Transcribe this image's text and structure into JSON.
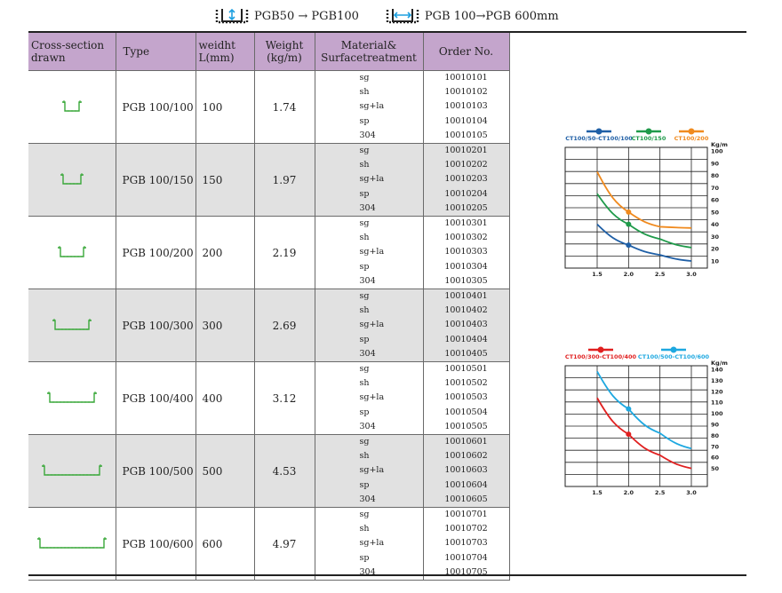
{
  "header": {
    "group1_text": "PGB50 → PGB100",
    "group2_text": "PGB 100→PGB 600mm"
  },
  "table": {
    "columns": [
      "Cross-section drawn",
      "Type",
      "weidht L(mm)",
      "Weight (kg/m)",
      "Material& Surfacetreatment",
      "Order No."
    ],
    "rows": [
      {
        "type": "PGB 100/100",
        "width": "100",
        "weight": "1.74",
        "materials": [
          "sg",
          "sh",
          "sg+la",
          "sp",
          "304"
        ],
        "orders": [
          "10010101",
          "10010102",
          "10010103",
          "10010104",
          "10010105"
        ],
        "channel_len": 16
      },
      {
        "type": "PGB 100/150",
        "width": "150",
        "weight": "1.97",
        "materials": [
          "sg",
          "sh",
          "sg+la",
          "sp",
          "304"
        ],
        "orders": [
          "10010201",
          "10010202",
          "10010203",
          "10010204",
          "10010205"
        ],
        "channel_len": 20
      },
      {
        "type": "PGB 100/200",
        "width": "200",
        "weight": "2.19",
        "materials": [
          "sg",
          "sh",
          "sg+la",
          "sp",
          "304"
        ],
        "orders": [
          "10010301",
          "10010302",
          "10010303",
          "10010304",
          "10010305"
        ],
        "channel_len": 26
      },
      {
        "type": "PGB 100/300",
        "width": "300",
        "weight": "2.69",
        "materials": [
          "sg",
          "sh",
          "sg+la",
          "sp",
          "304"
        ],
        "orders": [
          "10010401",
          "10010402",
          "10010403",
          "10010404",
          "10010405"
        ],
        "channel_len": 38
      },
      {
        "type": "PGB 100/400",
        "width": "400",
        "weight": "3.12",
        "materials": [
          "sg",
          "sh",
          "sg+la",
          "sp",
          "304"
        ],
        "orders": [
          "10010501",
          "10010502",
          "10010503",
          "10010504",
          "10010505"
        ],
        "channel_len": 50
      },
      {
        "type": "PGB 100/500",
        "width": "500",
        "weight": "4.53",
        "materials": [
          "sg",
          "sh",
          "sg+la",
          "sp",
          "304"
        ],
        "orders": [
          "10010601",
          "10010602",
          "10010603",
          "10010604",
          "10010605"
        ],
        "channel_len": 62
      },
      {
        "type": "PGB 100/600",
        "width": "600",
        "weight": "4.97",
        "materials": [
          "sg",
          "sh",
          "sg+la",
          "sp",
          "304"
        ],
        "orders": [
          "10010701",
          "10010702",
          "10010703",
          "10010704",
          "10010705"
        ],
        "channel_len": 72
      }
    ]
  },
  "chart_data": [
    {
      "type": "line",
      "title": "",
      "ylabel": "Kg/m",
      "x_ticks": [
        "1.5",
        "2.0",
        "2.5",
        "3.0"
      ],
      "y_ticks": [
        "100",
        "90",
        "80",
        "70",
        "60",
        "50",
        "40",
        "30",
        "20",
        "10"
      ],
      "xlim": [
        1.5,
        3.0
      ],
      "ylim": [
        10,
        100
      ],
      "legend_position": "top",
      "series": [
        {
          "name": "CT100/50-CT100/100",
          "color": "#1f5fa6",
          "x": [
            1.5,
            2.0,
            2.5,
            3.0
          ],
          "y": [
            40,
            23,
            15,
            10
          ],
          "marker_at": 2.0
        },
        {
          "name": "CT100/150",
          "color": "#1f9a4a",
          "x": [
            1.5,
            2.0,
            2.5,
            3.0
          ],
          "y": [
            65,
            40,
            28,
            21
          ],
          "marker_at": 2.0
        },
        {
          "name": "CT100/200",
          "color": "#f08a1e",
          "x": [
            1.5,
            2.0,
            2.5,
            3.0
          ],
          "y": [
            83,
            50,
            38,
            37
          ],
          "marker_at": 2.0
        }
      ]
    },
    {
      "type": "line",
      "title": "",
      "ylabel": "Kg/m",
      "x_ticks": [
        "1.5",
        "2.0",
        "2.5",
        "3.0"
      ],
      "y_ticks": [
        "140",
        "130",
        "120",
        "110",
        "100",
        "90",
        "80",
        "70",
        "60",
        "50"
      ],
      "xlim": [
        1.5,
        3.0
      ],
      "ylim": [
        40,
        140
      ],
      "legend_position": "top",
      "series": [
        {
          "name": "CT100/300-CT100/400",
          "color": "#e02020",
          "x": [
            1.5,
            2.0,
            2.5,
            3.0
          ],
          "y": [
            114,
            81,
            62,
            50
          ],
          "marker_at": 2.0
        },
        {
          "name": "CT100/500-CT100/600",
          "color": "#1ea8e0",
          "x": [
            1.5,
            2.0,
            2.5,
            3.0
          ],
          "y": [
            138,
            104,
            82,
            68
          ],
          "marker_at": 2.0
        }
      ]
    }
  ]
}
